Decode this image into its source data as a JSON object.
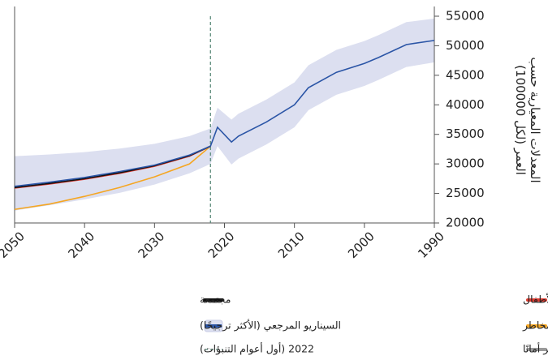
{
  "chart_data": {
    "type": "line",
    "ylabel": [
      "المعدلات المعيارية حسب",
      "العمر (لكل 100000)"
    ],
    "x": [
      1990,
      1994,
      1998,
      2000,
      2004,
      2008,
      2010,
      2014,
      2018,
      2019,
      2021,
      2022,
      2025,
      2030,
      2035,
      2040,
      2045,
      2050
    ],
    "xlim": [
      2050,
      1990
    ],
    "xticks": [
      2050,
      2040,
      2030,
      2020,
      2010,
      2000,
      1990
    ],
    "ylim": [
      20000,
      55000
    ],
    "yticks": [
      20000,
      25000,
      30000,
      35000,
      40000,
      45000,
      50000,
      55000
    ],
    "forecast_start": {
      "value": 2022,
      "label": "2022 (أول أعوام التنبؤات)",
      "color": "#5a8a7a"
    },
    "series": [
      {
        "name": "السيناريو المرجعي (الأكثر ترجيحًا)",
        "color": "#2b55a6",
        "band_color": "#dcdff0",
        "values": [
          50900,
          50200,
          48000,
          47000,
          45500,
          42900,
          40000,
          37100,
          34700,
          33700,
          36200,
          33000,
          31500,
          29800,
          28700,
          27700,
          26900,
          26200
        ],
        "upper": [
          54600,
          54000,
          51800,
          50800,
          49300,
          46700,
          43800,
          40900,
          38500,
          37500,
          39500,
          36000,
          34700,
          33400,
          32600,
          32000,
          31600,
          31300
        ],
        "lower": [
          47200,
          46400,
          44200,
          43200,
          41700,
          39100,
          36200,
          33300,
          30900,
          29900,
          33000,
          30000,
          28400,
          26500,
          25100,
          24000,
          23000,
          22100
        ]
      },
      {
        "name": "بيئة أكثر أمانًا",
        "color": "#9a9a9a",
        "values": [
          null,
          null,
          null,
          null,
          null,
          null,
          null,
          null,
          null,
          null,
          null,
          33000,
          31450,
          29750,
          28600,
          27600,
          26800,
          26100
        ]
      },
      {
        "name": "تحسين العوامل السلوكية والأيضية المسببة للمخاطر",
        "color": "#f5a623",
        "values": [
          null,
          null,
          null,
          null,
          null,
          null,
          null,
          null,
          null,
          null,
          null,
          33000,
          30000,
          27800,
          26000,
          24500,
          23200,
          22300
        ]
      },
      {
        "name": "تحسين وضع التغذية واللقاحات للأطفال",
        "color": "#e03a2f",
        "values": [
          null,
          null,
          null,
          null,
          null,
          null,
          null,
          null,
          null,
          null,
          null,
          33000,
          31300,
          29600,
          28400,
          27400,
          26600,
          25900
        ]
      },
      {
        "name": "مجتمعة",
        "color": "#111111",
        "values": [
          null,
          null,
          null,
          null,
          null,
          null,
          null,
          null,
          null,
          null,
          null,
          33000,
          31400,
          29700,
          28500,
          27500,
          26700,
          26000
        ]
      }
    ]
  }
}
